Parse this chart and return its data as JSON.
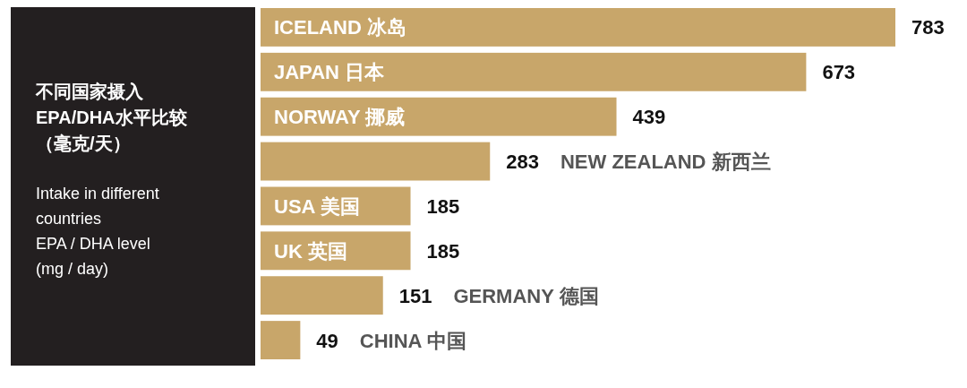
{
  "chart_data": {
    "type": "bar",
    "orientation": "horizontal",
    "title": "不同国家摄入EPA/DHA水平比较（毫克/天）",
    "subtitle": "Intake in different\ncountries\nEPA / DHA level\n(mg / day)",
    "categories": [
      "ICELAND 冰岛",
      "JAPAN 日本",
      "NORWAY 挪威",
      "NEW ZEALAND 新西兰",
      "USA 美国",
      "UK 英国",
      "GERMANY 德国",
      "CHINA 中国"
    ],
    "values": [
      783,
      673,
      439,
      283,
      185,
      185,
      151,
      49
    ],
    "color": "#c8a66a",
    "data_labels": true
  }
}
